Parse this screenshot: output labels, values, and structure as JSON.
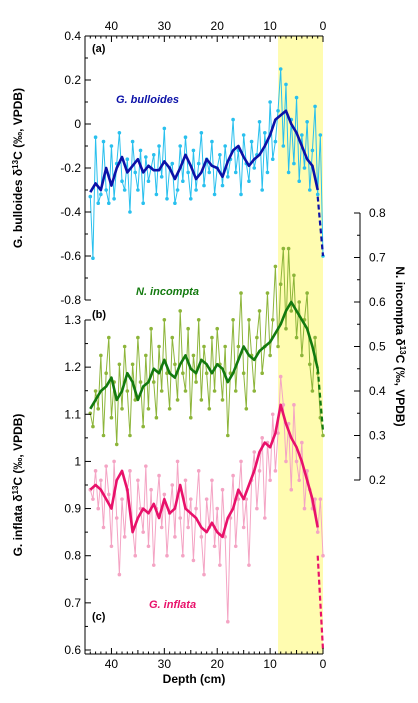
{
  "chart_data": {
    "type": "line",
    "x_axis": {
      "label": "Depth (cm)",
      "range": [
        45,
        0
      ],
      "bottom_ticks": [
        "40",
        "30",
        "20",
        "10",
        "0"
      ],
      "top_ticks": [
        "40",
        "30",
        "20",
        "10",
        "0"
      ],
      "tick_values": [
        40,
        30,
        20,
        10,
        0
      ]
    },
    "highlight_band": {
      "x_range": [
        8.5,
        0
      ],
      "color": "#fffcb0"
    },
    "panels": [
      {
        "label": "(a)",
        "series_name": "G. bulloides",
        "axis_side": "left",
        "ylabel_main": "G. bulloides δ",
        "ylabel_sup": "13",
        "ylabel_tail": "C (‰, VPDB)",
        "ylim": [
          -0.8,
          0.4
        ],
        "yticks": [
          "0.4",
          "0.2",
          "0",
          "-0.2",
          "-0.4",
          "-0.6",
          "-0.8"
        ],
        "ytick_values": [
          0.4,
          0.2,
          0,
          -0.2,
          -0.4,
          -0.6,
          -0.8
        ],
        "raw_color": "#29c0ee",
        "smooth_color": "#0c12a8",
        "raw": {
          "x": [
            44,
            43.5,
            43,
            42.5,
            42,
            41.5,
            41,
            40.5,
            40,
            39.5,
            39,
            38.5,
            38,
            37.5,
            37,
            36.5,
            36,
            35.5,
            35,
            34.5,
            34,
            33.5,
            33,
            32.5,
            32,
            31.5,
            31,
            30.5,
            30,
            29.5,
            29,
            28.5,
            28,
            27.5,
            27,
            26.5,
            26,
            25.5,
            25,
            24.5,
            24,
            23.5,
            23,
            22.5,
            22,
            21.5,
            21,
            20.5,
            20,
            19.5,
            19,
            18.5,
            18,
            17.5,
            17,
            16.5,
            16,
            15.5,
            15,
            14.5,
            14,
            13.5,
            13,
            12.5,
            12,
            11.5,
            11,
            10.5,
            10,
            9.5,
            9,
            8.5,
            8,
            7.5,
            7,
            6.5,
            6,
            5.5,
            5,
            4.5,
            4,
            3.5,
            3,
            2.5,
            2,
            1.5,
            1,
            0.5,
            0
          ],
          "y": [
            -0.33,
            -0.61,
            -0.06,
            -0.36,
            -0.32,
            -0.08,
            -0.3,
            -0.36,
            -0.1,
            -0.34,
            -0.18,
            -0.04,
            -0.26,
            -0.3,
            -0.16,
            -0.4,
            -0.08,
            -0.22,
            -0.3,
            -0.12,
            -0.36,
            -0.15,
            -0.26,
            -0.2,
            -0.14,
            -0.32,
            -0.1,
            -0.24,
            -0.02,
            -0.34,
            -0.2,
            -0.18,
            -0.36,
            -0.3,
            -0.1,
            -0.26,
            -0.06,
            -0.22,
            -0.34,
            -0.12,
            -0.3,
            -0.18,
            -0.04,
            -0.28,
            -0.16,
            -0.22,
            -0.08,
            -0.32,
            -0.2,
            -0.14,
            -0.28,
            -0.1,
            -0.24,
            -0.16,
            0.02,
            -0.22,
            -0.12,
            -0.32,
            -0.05,
            -0.18,
            -0.26,
            -0.08,
            -0.2,
            -0.14,
            0.01,
            -0.3,
            -0.04,
            -0.22,
            0.1,
            -0.16,
            -0.08,
            0.06,
            0.25,
            -0.1,
            0.18,
            -0.22,
            0.02,
            -0.18,
            0.12,
            -0.26,
            -0.05,
            -0.2,
            0.01,
            -0.3,
            -0.12,
            0.08,
            -0.32,
            -0.05,
            -0.6
          ]
        },
        "smooth": {
          "x": [
            44,
            43,
            42,
            41,
            40,
            39,
            38,
            37,
            36,
            35,
            34,
            33,
            32,
            31,
            30,
            29,
            28,
            27,
            26,
            25,
            24,
            23,
            22,
            21,
            20,
            19,
            18,
            17,
            16,
            15,
            14,
            13,
            12,
            11,
            10,
            9,
            8,
            7,
            6,
            5,
            4,
            3,
            2,
            1
          ],
          "y": [
            -0.31,
            -0.27,
            -0.3,
            -0.2,
            -0.28,
            -0.2,
            -0.15,
            -0.22,
            -0.19,
            -0.16,
            -0.22,
            -0.19,
            -0.21,
            -0.21,
            -0.17,
            -0.2,
            -0.25,
            -0.2,
            -0.14,
            -0.19,
            -0.25,
            -0.22,
            -0.16,
            -0.19,
            -0.2,
            -0.24,
            -0.17,
            -0.12,
            -0.1,
            -0.15,
            -0.19,
            -0.16,
            -0.14,
            -0.1,
            -0.05,
            0.02,
            0.04,
            0.06,
            0,
            -0.04,
            -0.1,
            -0.16,
            -0.19,
            -0.3
          ]
        },
        "extrapolation": {
          "x": [
            1,
            0
          ],
          "y": [
            -0.33,
            -0.6
          ]
        }
      },
      {
        "label": "(b)",
        "series_name": "N. incompta",
        "axis_side": "right",
        "ylabel_main": "N. incompta δ",
        "ylabel_sup": "13",
        "ylabel_tail": "C (‰, VPDB)",
        "ylim": [
          0.2,
          0.8
        ],
        "yticks": [
          "0.8",
          "0.7",
          "0.6",
          "0.5",
          "0.4",
          "0.3",
          "0.2"
        ],
        "ytick_values": [
          0.8,
          0.7,
          0.6,
          0.5,
          0.4,
          0.3,
          0.2
        ],
        "raw_color": "#8db53a",
        "smooth_color": "#137a0f",
        "raw": {
          "x": [
            44,
            43.5,
            43,
            42.5,
            42,
            41.5,
            41,
            40.5,
            40,
            39.5,
            39,
            38.5,
            38,
            37.5,
            37,
            36.5,
            36,
            35.5,
            35,
            34.5,
            34,
            33.5,
            33,
            32.5,
            32,
            31.5,
            31,
            30.5,
            30,
            29.5,
            29,
            28.5,
            28,
            27.5,
            27,
            26.5,
            26,
            25.5,
            25,
            24.5,
            24,
            23.5,
            23,
            22.5,
            22,
            21.5,
            21,
            20.5,
            20,
            19.5,
            19,
            18.5,
            18,
            17.5,
            17,
            16.5,
            16,
            15.5,
            15,
            14.5,
            14,
            13.5,
            13,
            12.5,
            12,
            11.5,
            11,
            10.5,
            10,
            9.5,
            9,
            8.5,
            8,
            7.5,
            7,
            6.5,
            6,
            5.5,
            5,
            4.5,
            4,
            3.5,
            3,
            2.5,
            2,
            1.5,
            1,
            0.5,
            0
          ],
          "y": [
            0.35,
            0.32,
            0.4,
            0.36,
            0.48,
            0.3,
            0.44,
            0.52,
            0.34,
            0.42,
            0.28,
            0.46,
            0.36,
            0.5,
            0.4,
            0.3,
            0.46,
            0.38,
            0.52,
            0.42,
            0.32,
            0.48,
            0.36,
            0.54,
            0.42,
            0.34,
            0.5,
            0.4,
            0.56,
            0.44,
            0.36,
            0.52,
            0.46,
            0.38,
            0.58,
            0.44,
            0.4,
            0.54,
            0.34,
            0.48,
            0.42,
            0.56,
            0.38,
            0.5,
            0.44,
            0.36,
            0.52,
            0.4,
            0.54,
            0.46,
            0.38,
            0.5,
            0.3,
            0.44,
            0.56,
            0.4,
            0.5,
            0.62,
            0.44,
            0.36,
            0.56,
            0.48,
            0.4,
            0.52,
            0.58,
            0.44,
            0.5,
            0.62,
            0.48,
            0.56,
            0.68,
            0.5,
            0.64,
            0.72,
            0.54,
            0.72,
            0.58,
            0.66,
            0.52,
            0.6,
            0.48,
            0.56,
            0.62,
            0.46,
            0.4,
            0.52,
            0.44,
            0.34,
            0.3
          ]
        },
        "smooth": {
          "x": [
            44,
            43,
            42,
            41,
            40,
            39,
            38,
            37,
            36,
            35,
            34,
            33,
            32,
            31,
            30,
            29,
            28,
            27,
            26,
            25,
            24,
            23,
            22,
            21,
            20,
            19,
            18,
            17,
            16,
            15,
            14,
            13,
            12,
            11,
            10,
            9,
            8,
            7,
            6,
            5,
            4,
            3,
            2,
            1
          ],
          "y": [
            0.36,
            0.38,
            0.4,
            0.41,
            0.43,
            0.38,
            0.4,
            0.44,
            0.42,
            0.38,
            0.41,
            0.42,
            0.45,
            0.44,
            0.47,
            0.44,
            0.43,
            0.46,
            0.48,
            0.45,
            0.44,
            0.47,
            0.46,
            0.44,
            0.46,
            0.45,
            0.42,
            0.44,
            0.47,
            0.5,
            0.48,
            0.47,
            0.49,
            0.5,
            0.51,
            0.53,
            0.55,
            0.58,
            0.6,
            0.58,
            0.56,
            0.54,
            0.5,
            0.45
          ]
        },
        "extrapolation": {
          "x": [
            1,
            0
          ],
          "y": [
            0.45,
            0.31
          ]
        }
      },
      {
        "label": "(c)",
        "series_name": "G. inflata",
        "axis_side": "left",
        "ylabel_main": "G. inflata δ",
        "ylabel_sup": "13",
        "ylabel_tail": "C (‰, VPDB)",
        "ylim": [
          0.6,
          1.3
        ],
        "yticks": [
          "1.3",
          "1.2",
          "1.1",
          "1",
          "0.9",
          "0.8",
          "0.7",
          "0.6"
        ],
        "ytick_values": [
          1.3,
          1.2,
          1.1,
          1.0,
          0.9,
          0.8,
          0.7,
          0.6
        ],
        "raw_color": "#f4a4c4",
        "smooth_color": "#e8116a",
        "raw": {
          "x": [
            44,
            43.5,
            43,
            42.5,
            42,
            41.5,
            41,
            40.5,
            40,
            39.5,
            39,
            38.5,
            38,
            37.5,
            37,
            36.5,
            36,
            35.5,
            35,
            34.5,
            34,
            33.5,
            33,
            32.5,
            32,
            31.5,
            31,
            30.5,
            30,
            29.5,
            29,
            28.5,
            28,
            27.5,
            27,
            26.5,
            26,
            25.5,
            25,
            24.5,
            24,
            23.5,
            23,
            22.5,
            22,
            21.5,
            21,
            20.5,
            20,
            19.5,
            19,
            18.5,
            18,
            17.5,
            17,
            16.5,
            16,
            15.5,
            15,
            14.5,
            14,
            13.5,
            13,
            12.5,
            12,
            11.5,
            11,
            10.5,
            10,
            9.5,
            9,
            8.5,
            8,
            7.5,
            7,
            6.5,
            6,
            5.5,
            5,
            4.5,
            4,
            3.5,
            3,
            2.5,
            2,
            1.5,
            1,
            0.5,
            0
          ],
          "y": [
            0.94,
            0.92,
            0.98,
            0.9,
            0.96,
            0.86,
            0.99,
            0.93,
            0.82,
            1.0,
            0.88,
            0.76,
            0.92,
            0.84,
            0.94,
            0.98,
            0.86,
            0.8,
            0.96,
            0.9,
            0.85,
            0.99,
            0.82,
            0.94,
            0.78,
            0.9,
            0.97,
            0.86,
            0.93,
            0.8,
            0.89,
            0.95,
            0.84,
            1.0,
            0.88,
            0.8,
            0.96,
            0.86,
            0.92,
            0.79,
            0.9,
            0.98,
            0.84,
            0.76,
            0.92,
            0.86,
            0.96,
            0.82,
            0.9,
            0.78,
            0.94,
            0.84,
            0.66,
            0.88,
            0.97,
            0.82,
            0.92,
            1.0,
            0.86,
            0.92,
            0.78,
            0.96,
            1.02,
            0.9,
            0.98,
            1.05,
            0.88,
            1.04,
            0.96,
            1.1,
            0.98,
            1.06,
            1.18,
            1.12,
            1.0,
            1.08,
            0.94,
            1.12,
            1.0,
            0.96,
            1.04,
            0.9,
            0.98,
            0.94,
            0.9,
            0.92,
            0.85,
            0.92,
            0.8
          ]
        },
        "smooth": {
          "x": [
            44,
            43,
            42,
            41,
            40,
            39,
            38,
            37,
            36,
            35,
            34,
            33,
            32,
            31,
            30,
            29,
            28,
            27,
            26,
            25,
            24,
            23,
            22,
            21,
            20,
            19,
            18,
            17,
            16,
            15,
            14,
            13,
            12,
            11,
            10,
            9,
            8,
            7,
            6,
            5,
            4,
            3,
            2,
            1
          ],
          "y": [
            0.94,
            0.95,
            0.94,
            0.92,
            0.9,
            0.96,
            0.98,
            0.94,
            0.85,
            0.88,
            0.9,
            0.89,
            0.91,
            0.88,
            0.92,
            0.89,
            0.9,
            0.95,
            0.9,
            0.89,
            0.88,
            0.86,
            0.85,
            0.87,
            0.85,
            0.84,
            0.88,
            0.9,
            0.94,
            0.92,
            0.95,
            0.98,
            1.02,
            1.04,
            1.03,
            1.06,
            1.12,
            1.08,
            1.05,
            1.03,
            1.0,
            0.96,
            0.92,
            0.86
          ]
        },
        "extrapolation": {
          "x": [
            1,
            0
          ],
          "y": [
            0.8,
            0.6
          ]
        }
      }
    ]
  }
}
